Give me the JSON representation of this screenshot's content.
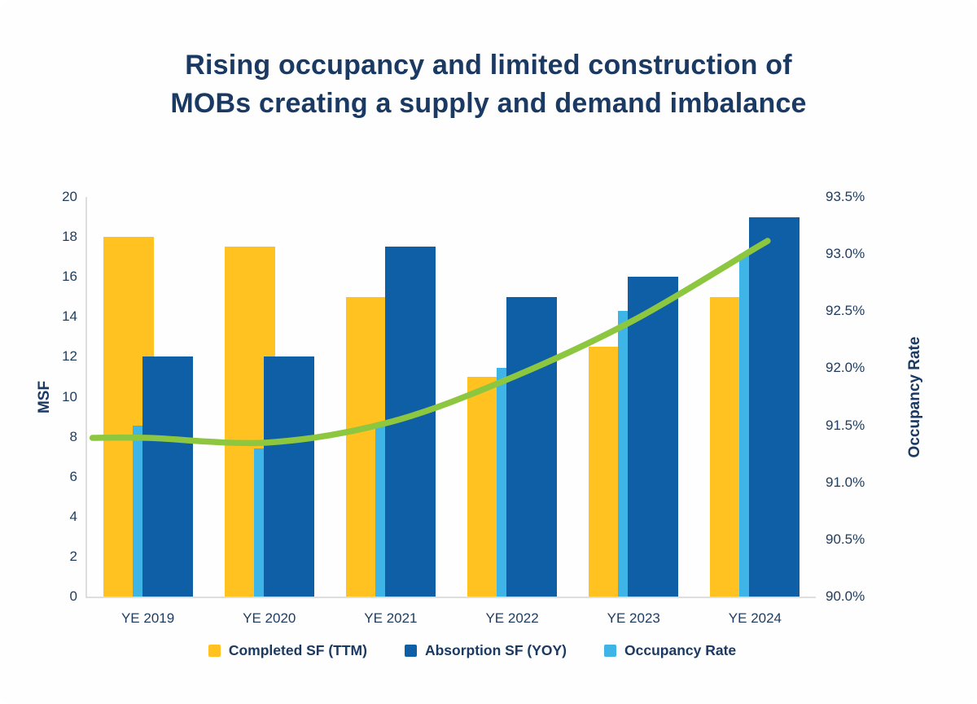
{
  "title": {
    "line1": "Rising occupancy and limited construction of",
    "line2": "MOBs creating a supply and demand imbalance"
  },
  "colors": {
    "gold": "#ffc220",
    "navy_bar": "#0e5fa5",
    "sky": "#3fb4e6",
    "green": "#8dc63f",
    "text_navy": "#1b3a63",
    "axis_line": "#dedede"
  },
  "chart_data": {
    "type": "combo-bar-line",
    "categories": [
      "YE 2019",
      "YE 2020",
      "YE 2021",
      "YE 2022",
      "YE 2023",
      "YE 2024"
    ],
    "series": [
      {
        "name": "Completed SF (TTM)",
        "type": "bar",
        "axis": "left",
        "color_key": "gold",
        "values": [
          18,
          17.5,
          15,
          11,
          12.5,
          15
        ]
      },
      {
        "name": "Absorption SF (YOY)",
        "type": "bar",
        "axis": "left",
        "color_key": "navy_bar",
        "values": [
          12,
          12,
          17.5,
          15,
          16,
          19
        ]
      },
      {
        "name": "Occupancy Rate",
        "type": "bar",
        "axis": "right",
        "color_key": "sky",
        "values": [
          91.5,
          91.3,
          91.5,
          92.0,
          92.5,
          93.0
        ]
      }
    ],
    "trend_line": {
      "name": "Occupancy Rate trend",
      "axis": "right",
      "color_key": "green",
      "values": [
        91.39,
        91.35,
        91.53,
        91.92,
        92.42,
        93.05
      ]
    },
    "left_axis": {
      "label": "MSF",
      "min": 0,
      "max": 20,
      "ticks": [
        0,
        2,
        4,
        6,
        8,
        10,
        12,
        14,
        16,
        18,
        20
      ]
    },
    "right_axis": {
      "label": "Occupancy Rate",
      "min": 90.0,
      "max": 93.5,
      "ticks": [
        {
          "value": 90.0,
          "label": "90.0%"
        },
        {
          "value": 90.5,
          "label": "90.5%"
        },
        {
          "value": 91.0,
          "label": "91.0%"
        },
        {
          "value": 91.5,
          "label": "91.5%"
        },
        {
          "value": 92.0,
          "label": "92.0%"
        },
        {
          "value": 92.5,
          "label": "92.5%"
        },
        {
          "value": 93.0,
          "label": "93.0%"
        },
        {
          "value": 93.5,
          "label": "93.5%"
        }
      ]
    },
    "legend_position": "bottom",
    "grid": "off"
  },
  "legend": {
    "items": [
      {
        "label": "Completed SF (TTM)",
        "color_key": "gold"
      },
      {
        "label": "Absorption SF (YOY)",
        "color_key": "navy_bar"
      },
      {
        "label": "Occupancy Rate",
        "color_key": "sky"
      }
    ]
  }
}
